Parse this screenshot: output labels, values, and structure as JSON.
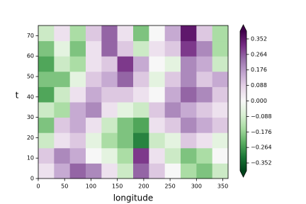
{
  "chart_data": {
    "type": "heatmap",
    "xlabel": "longitude",
    "ylabel": "t",
    "xlim": [
      0,
      360
    ],
    "ylim": [
      0,
      75
    ],
    "xticks": [
      0,
      50,
      100,
      150,
      200,
      250,
      300,
      350
    ],
    "yticks": [
      0,
      10,
      20,
      30,
      40,
      50,
      60,
      70
    ],
    "clim": [
      -0.396,
      0.396
    ],
    "colormap": [
      "#00441b",
      "#1b7837",
      "#5aae61",
      "#a6dba0",
      "#d9f0d3",
      "#f7f7f7",
      "#e7d4e8",
      "#c2a5cf",
      "#9970ab",
      "#762a83",
      "#40004b"
    ],
    "colorbar_ticks": [
      {
        "value": -0.352,
        "label": "−0.352"
      },
      {
        "value": -0.264,
        "label": "−0.264"
      },
      {
        "value": -0.176,
        "label": "−0.176"
      },
      {
        "value": -0.088,
        "label": "−0.088"
      },
      {
        "value": 0,
        "label": "0.000"
      },
      0.088,
      0.176,
      0.264,
      0.352
    ],
    "z": [
      [
        0.05,
        0.15,
        0.25,
        0.2,
        0.05,
        -0.1,
        0.25,
        0.1,
        0.0,
        -0.15,
        -0.2,
        -0.1
      ],
      [
        0.1,
        0.2,
        0.15,
        0.0,
        -0.05,
        -0.15,
        0.3,
        0.05,
        -0.1,
        -0.2,
        -0.15,
        0.0
      ],
      [
        -0.1,
        0.05,
        0.1,
        -0.05,
        -0.15,
        -0.2,
        -0.3,
        -0.1,
        -0.05,
        0.1,
        0.05,
        -0.05
      ],
      [
        -0.2,
        0.1,
        0.15,
        0.05,
        -0.1,
        -0.2,
        -0.25,
        0.05,
        0.1,
        0.2,
        0.15,
        0.1
      ],
      [
        -0.1,
        -0.15,
        0.15,
        0.2,
        0.05,
        -0.05,
        -0.1,
        0.1,
        0.2,
        0.15,
        0.1,
        0.05
      ],
      [
        -0.25,
        -0.1,
        0.05,
        0.15,
        0.1,
        0.1,
        0.05,
        0.0,
        0.15,
        0.25,
        0.2,
        0.1
      ],
      [
        -0.2,
        -0.2,
        -0.05,
        0.1,
        0.15,
        0.25,
        0.1,
        -0.05,
        0.1,
        0.2,
        0.1,
        0.15
      ],
      [
        -0.25,
        -0.1,
        -0.15,
        0.05,
        0.1,
        0.3,
        0.15,
        0.0,
        -0.05,
        0.2,
        0.15,
        -0.1
      ],
      [
        -0.2,
        -0.05,
        -0.2,
        0.05,
        0.25,
        0.1,
        -0.1,
        0.05,
        0.1,
        0.3,
        0.2,
        -0.15
      ],
      [
        -0.1,
        0.05,
        -0.15,
        0.1,
        0.25,
        0.05,
        -0.2,
        0.0,
        0.15,
        0.35,
        0.1,
        -0.15
      ]
    ]
  }
}
